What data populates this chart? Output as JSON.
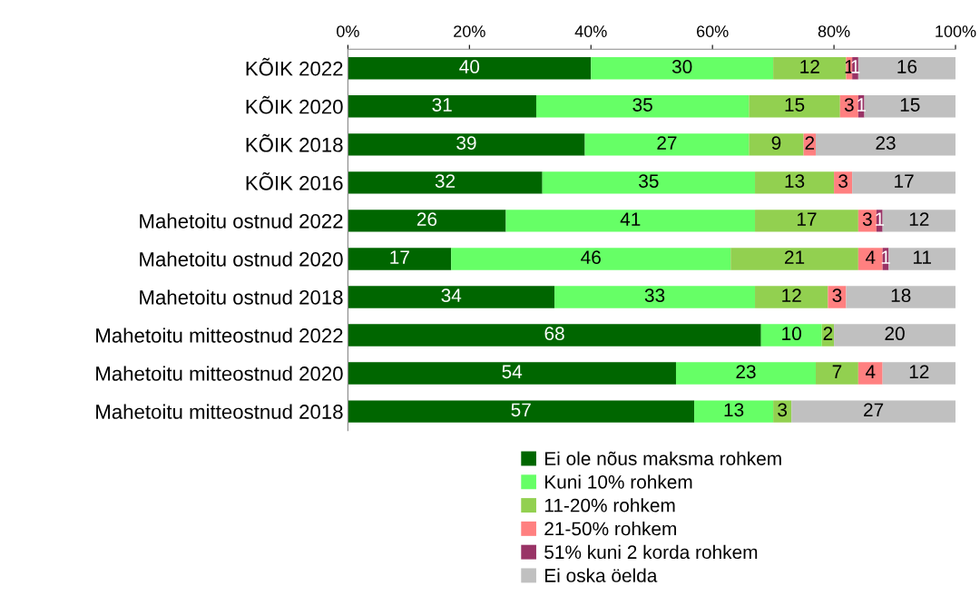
{
  "chart_data": {
    "type": "bar",
    "orientation": "horizontal",
    "stacked": true,
    "data_labels": true,
    "legend": "bottom",
    "grid": false,
    "categories": [
      "KÕIK 2022",
      "KÕIK 2020",
      "KÕIK 2018",
      "KÕIK 2016",
      "Mahetoitu ostnud 2022",
      "Mahetoitu ostnud 2020",
      "Mahetoitu ostnud 2018",
      "Mahetoitu mitteostnud 2022",
      "Mahetoitu mitteostnud 2020",
      "Mahetoitu mitteostnud 2018"
    ],
    "xlim": [
      0,
      100
    ],
    "xticks": [
      {
        "value": 0,
        "label": "0%"
      },
      {
        "value": 20,
        "label": "20%"
      },
      {
        "value": 40,
        "label": "40%"
      },
      {
        "value": 60,
        "label": "60%"
      },
      {
        "value": 80,
        "label": "80%"
      },
      {
        "value": 100,
        "label": "100%"
      }
    ],
    "series": [
      {
        "name": "Ei ole nõus maksma rohkem",
        "color": "#006600",
        "values": [
          40,
          31,
          39,
          32,
          26,
          17,
          34,
          68,
          54,
          57
        ]
      },
      {
        "name": "Kuni 10% rohkem",
        "color": "#66ff66",
        "values": [
          30,
          35,
          27,
          35,
          41,
          46,
          33,
          10,
          23,
          13
        ]
      },
      {
        "name": "11-20% rohkem",
        "color": "#92d050",
        "values": [
          12,
          15,
          9,
          13,
          17,
          21,
          12,
          2,
          7,
          3
        ]
      },
      {
        "name": "21-50% rohkem",
        "color": "#ff8080",
        "values": [
          1,
          3,
          2,
          3,
          3,
          4,
          3,
          null,
          4,
          null
        ]
      },
      {
        "name": "51% kuni 2 korda rohkem",
        "color": "#993366",
        "values": [
          1,
          1,
          null,
          null,
          1,
          1,
          null,
          null,
          null,
          null
        ]
      },
      {
        "name": "Ei oska öelda",
        "color": "#c0c0c0",
        "values": [
          16,
          15,
          23,
          17,
          12,
          11,
          18,
          20,
          12,
          27
        ]
      }
    ]
  }
}
